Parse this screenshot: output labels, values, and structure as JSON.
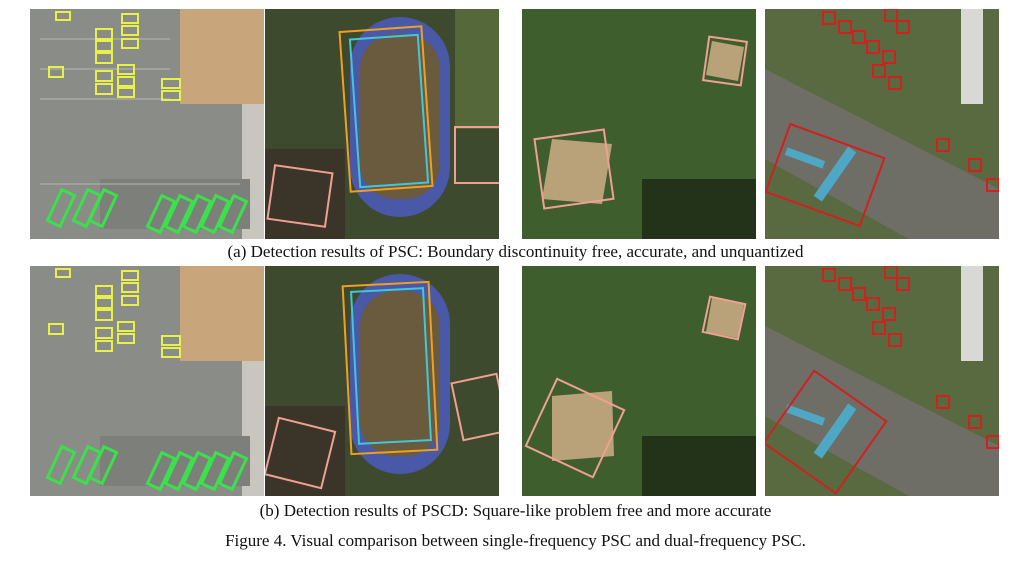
{
  "rows": [
    {
      "caption": "(a) Detection results of  PSC: Boundary discontinuity free, accurate, and unquantized",
      "panels": [
        {
          "scene": "parking-lot"
        },
        {
          "scene": "athletics-field"
        },
        {
          "scene": "baseball-diamond"
        },
        {
          "scene": "airport"
        }
      ]
    },
    {
      "caption": "(b) Detection results of PSCD: Square-like problem free and more accurate",
      "panels": [
        {
          "scene": "parking-lot"
        },
        {
          "scene": "athletics-field"
        },
        {
          "scene": "baseball-diamond"
        },
        {
          "scene": "airport"
        }
      ]
    }
  ],
  "figure_caption": "Figure 4. Visual comparison between single-frequency PSC and dual-frequency PSC.",
  "colors": {
    "vehicle_box": "#e8f04a",
    "bus_box": "#3be04a",
    "field_box_orange": "#f0a020",
    "field_box_cyan": "#40c8d8",
    "pitch_box": "#f0a090",
    "plane_box": "#d02020"
  }
}
